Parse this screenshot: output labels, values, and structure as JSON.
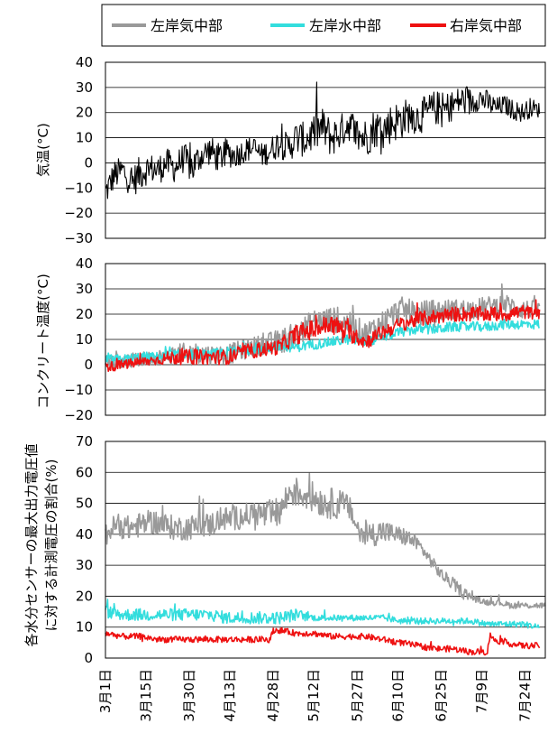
{
  "legend": {
    "items": [
      {
        "label": "左岸気中部",
        "color": "#999999"
      },
      {
        "label": "左岸水中部",
        "color": "#33dddd"
      },
      {
        "label": "右岸気中部",
        "color": "#ee1111"
      }
    ]
  },
  "x_axis": {
    "tick_labels": [
      "3月1日",
      "3月15日",
      "3月30日",
      "4月13日",
      "4月28日",
      "5月12日",
      "5月27日",
      "6月10日",
      "6月25日",
      "7月9日",
      "7月24日"
    ],
    "tick_days": [
      0,
      14,
      29,
      43,
      58,
      72,
      87,
      101,
      116,
      130,
      145
    ],
    "range": [
      0,
      152
    ]
  },
  "chart_data": [
    {
      "type": "line",
      "ylabel": "気温(°C)",
      "ylim": [
        -30,
        40
      ],
      "yticks": [
        "40",
        "30",
        "20",
        "10",
        "0",
        "−10",
        "−20",
        "−30"
      ],
      "grid": true,
      "series": [
        {
          "color": "#000000",
          "x": [
            0,
            3,
            6,
            9,
            12,
            15,
            18,
            21,
            24,
            27,
            30,
            33,
            36,
            39,
            42,
            45,
            48,
            51,
            54,
            57,
            60,
            63,
            66,
            69,
            72,
            75,
            78,
            81,
            84,
            87,
            90,
            93,
            96,
            99,
            102,
            105,
            108,
            111,
            114,
            117,
            120,
            123,
            126,
            129,
            132,
            135,
            138,
            141,
            144,
            147,
            150
          ],
          "values": [
            -12,
            -5,
            -3,
            -8,
            -4,
            -2,
            -3,
            0,
            -2,
            2,
            -2,
            3,
            5,
            2,
            4,
            3,
            5,
            6,
            3,
            5,
            8,
            6,
            10,
            9,
            12,
            14,
            10,
            12,
            16,
            11,
            10,
            14,
            13,
            16,
            17,
            19,
            18,
            20,
            22,
            21,
            23,
            25,
            24,
            26,
            24,
            22,
            23,
            21,
            20,
            22,
            21
          ],
          "spread": [
            6,
            6,
            6,
            6,
            7,
            6,
            6,
            6,
            6,
            6,
            7,
            6,
            6,
            6,
            6,
            5,
            5,
            5,
            5,
            5,
            6,
            6,
            7,
            7,
            8,
            8,
            8,
            7,
            7,
            8,
            8,
            8,
            8,
            8,
            8,
            7,
            7,
            7,
            7,
            7,
            6,
            6,
            6,
            5,
            5,
            4,
            4,
            4,
            4,
            4,
            3
          ]
        }
      ]
    },
    {
      "type": "line",
      "ylabel": "コンクリート温度(°C)",
      "ylim": [
        -20,
        40
      ],
      "yticks": [
        "40",
        "30",
        "20",
        "10",
        "0",
        "−10",
        "−20"
      ],
      "grid": true,
      "series": [
        {
          "color": "#999999",
          "x": [
            0,
            6,
            12,
            18,
            24,
            30,
            36,
            42,
            48,
            54,
            60,
            66,
            72,
            78,
            84,
            90,
            96,
            102,
            108,
            114,
            120,
            126,
            132,
            138,
            144,
            150
          ],
          "values": [
            2,
            1,
            2,
            3,
            4,
            5,
            4,
            4,
            6,
            8,
            9,
            12,
            17,
            18,
            16,
            12,
            17,
            22,
            20,
            21,
            22,
            22,
            23,
            24,
            22,
            22
          ],
          "spread": [
            3,
            3,
            3,
            3,
            4,
            4,
            4,
            4,
            4,
            4,
            5,
            5,
            5,
            5,
            5,
            5,
            5,
            5,
            5,
            5,
            4,
            4,
            4,
            4,
            4,
            3
          ]
        },
        {
          "color": "#33dddd",
          "x": [
            0,
            6,
            12,
            18,
            24,
            30,
            36,
            42,
            48,
            54,
            60,
            66,
            72,
            78,
            84,
            90,
            96,
            102,
            108,
            114,
            120,
            126,
            132,
            138,
            144,
            150
          ],
          "values": [
            2,
            2,
            3,
            3,
            4,
            4,
            4,
            5,
            6,
            6,
            7,
            7,
            8,
            9,
            10,
            9,
            11,
            13,
            14,
            14,
            15,
            15,
            15,
            16,
            16,
            16
          ],
          "spread": [
            2,
            2,
            2,
            2,
            2,
            2,
            2,
            2,
            2,
            2,
            2,
            2,
            2,
            2,
            2,
            2,
            2,
            2,
            2,
            2,
            2,
            2,
            2,
            2,
            2,
            2
          ]
        },
        {
          "color": "#ee1111",
          "x": [
            0,
            6,
            12,
            18,
            24,
            30,
            36,
            42,
            48,
            54,
            60,
            66,
            72,
            78,
            84,
            90,
            96,
            102,
            108,
            114,
            120,
            126,
            132,
            138,
            144,
            150
          ],
          "values": [
            -1,
            0,
            1,
            2,
            3,
            3,
            3,
            3,
            5,
            6,
            7,
            12,
            14,
            16,
            13,
            9,
            13,
            16,
            18,
            19,
            20,
            20,
            20,
            20,
            21,
            20
          ],
          "spread": [
            2,
            2,
            2,
            2,
            3,
            3,
            3,
            3,
            3,
            3,
            3,
            4,
            4,
            4,
            4,
            3,
            3,
            3,
            3,
            3,
            3,
            3,
            3,
            3,
            3,
            2
          ]
        }
      ]
    },
    {
      "type": "line",
      "ylabel": "各水分センサーの最大出力電圧値に対する計測電圧の割合(%)",
      "ylabel_lines": [
        "各水分センサーの最大出力電圧値",
        "に対する計測電圧の割合(%)"
      ],
      "ylim": [
        0,
        70
      ],
      "yticks": [
        "70",
        "60",
        "50",
        "40",
        "30",
        "20",
        "10",
        "0"
      ],
      "grid": true,
      "series": [
        {
          "color": "#999999",
          "x": [
            0,
            4,
            8,
            12,
            16,
            20,
            24,
            28,
            32,
            36,
            40,
            44,
            48,
            52,
            56,
            60,
            64,
            68,
            72,
            76,
            80,
            84,
            88,
            92,
            96,
            100,
            104,
            108,
            112,
            116,
            120,
            124,
            128,
            132,
            136,
            140,
            144,
            148,
            152
          ],
          "values": [
            40,
            43,
            42,
            43,
            44,
            43,
            42,
            42,
            43,
            43,
            45,
            45,
            46,
            47,
            46,
            47,
            54,
            53,
            52,
            50,
            50,
            49,
            40,
            40,
            41,
            40,
            39,
            37,
            32,
            27,
            24,
            21,
            19,
            18,
            18,
            17,
            17,
            17,
            17
          ],
          "spread": [
            4,
            4,
            4,
            4,
            4,
            4,
            4,
            4,
            4,
            4,
            4,
            4,
            4,
            4,
            5,
            5,
            5,
            5,
            5,
            5,
            5,
            4,
            4,
            4,
            4,
            3,
            3,
            2,
            2,
            2,
            2,
            2,
            1,
            1,
            1,
            1,
            1,
            1,
            1
          ]
        },
        {
          "color": "#33dddd",
          "x": [
            0,
            6,
            12,
            18,
            24,
            30,
            36,
            42,
            48,
            54,
            60,
            66,
            72,
            78,
            84,
            90,
            96,
            102,
            108,
            114,
            120,
            126,
            132,
            138,
            144,
            150
          ],
          "values": [
            15,
            14,
            14,
            14,
            14,
            14,
            14,
            13,
            13,
            13,
            13,
            14,
            13,
            13,
            13,
            13,
            13,
            12,
            12,
            12,
            12,
            12,
            11,
            11,
            11,
            10
          ],
          "spread": [
            2,
            2,
            2,
            2,
            2,
            2,
            2,
            2,
            2,
            2,
            2,
            2,
            1,
            1,
            1,
            1,
            1,
            1,
            1,
            1,
            1,
            1,
            1,
            1,
            1,
            1
          ]
        },
        {
          "color": "#ee1111",
          "x": [
            0,
            6,
            12,
            18,
            24,
            30,
            36,
            42,
            48,
            54,
            57,
            58,
            60,
            66,
            72,
            78,
            84,
            90,
            96,
            102,
            108,
            114,
            120,
            126,
            132,
            133,
            134,
            138,
            144,
            150
          ],
          "values": [
            8,
            7,
            7,
            6,
            6,
            6,
            6,
            6,
            6,
            6,
            6,
            9,
            9,
            8,
            8,
            7,
            7,
            7,
            6,
            5,
            4,
            3,
            3,
            2,
            2,
            8,
            6,
            5,
            4,
            4
          ],
          "spread": [
            1,
            1,
            1,
            1,
            1,
            1,
            1,
            1,
            1,
            1,
            1,
            1,
            1,
            1,
            1,
            1,
            1,
            1,
            1,
            1,
            1,
            1,
            1,
            1,
            1,
            1,
            1,
            1,
            1,
            1
          ]
        }
      ]
    }
  ]
}
